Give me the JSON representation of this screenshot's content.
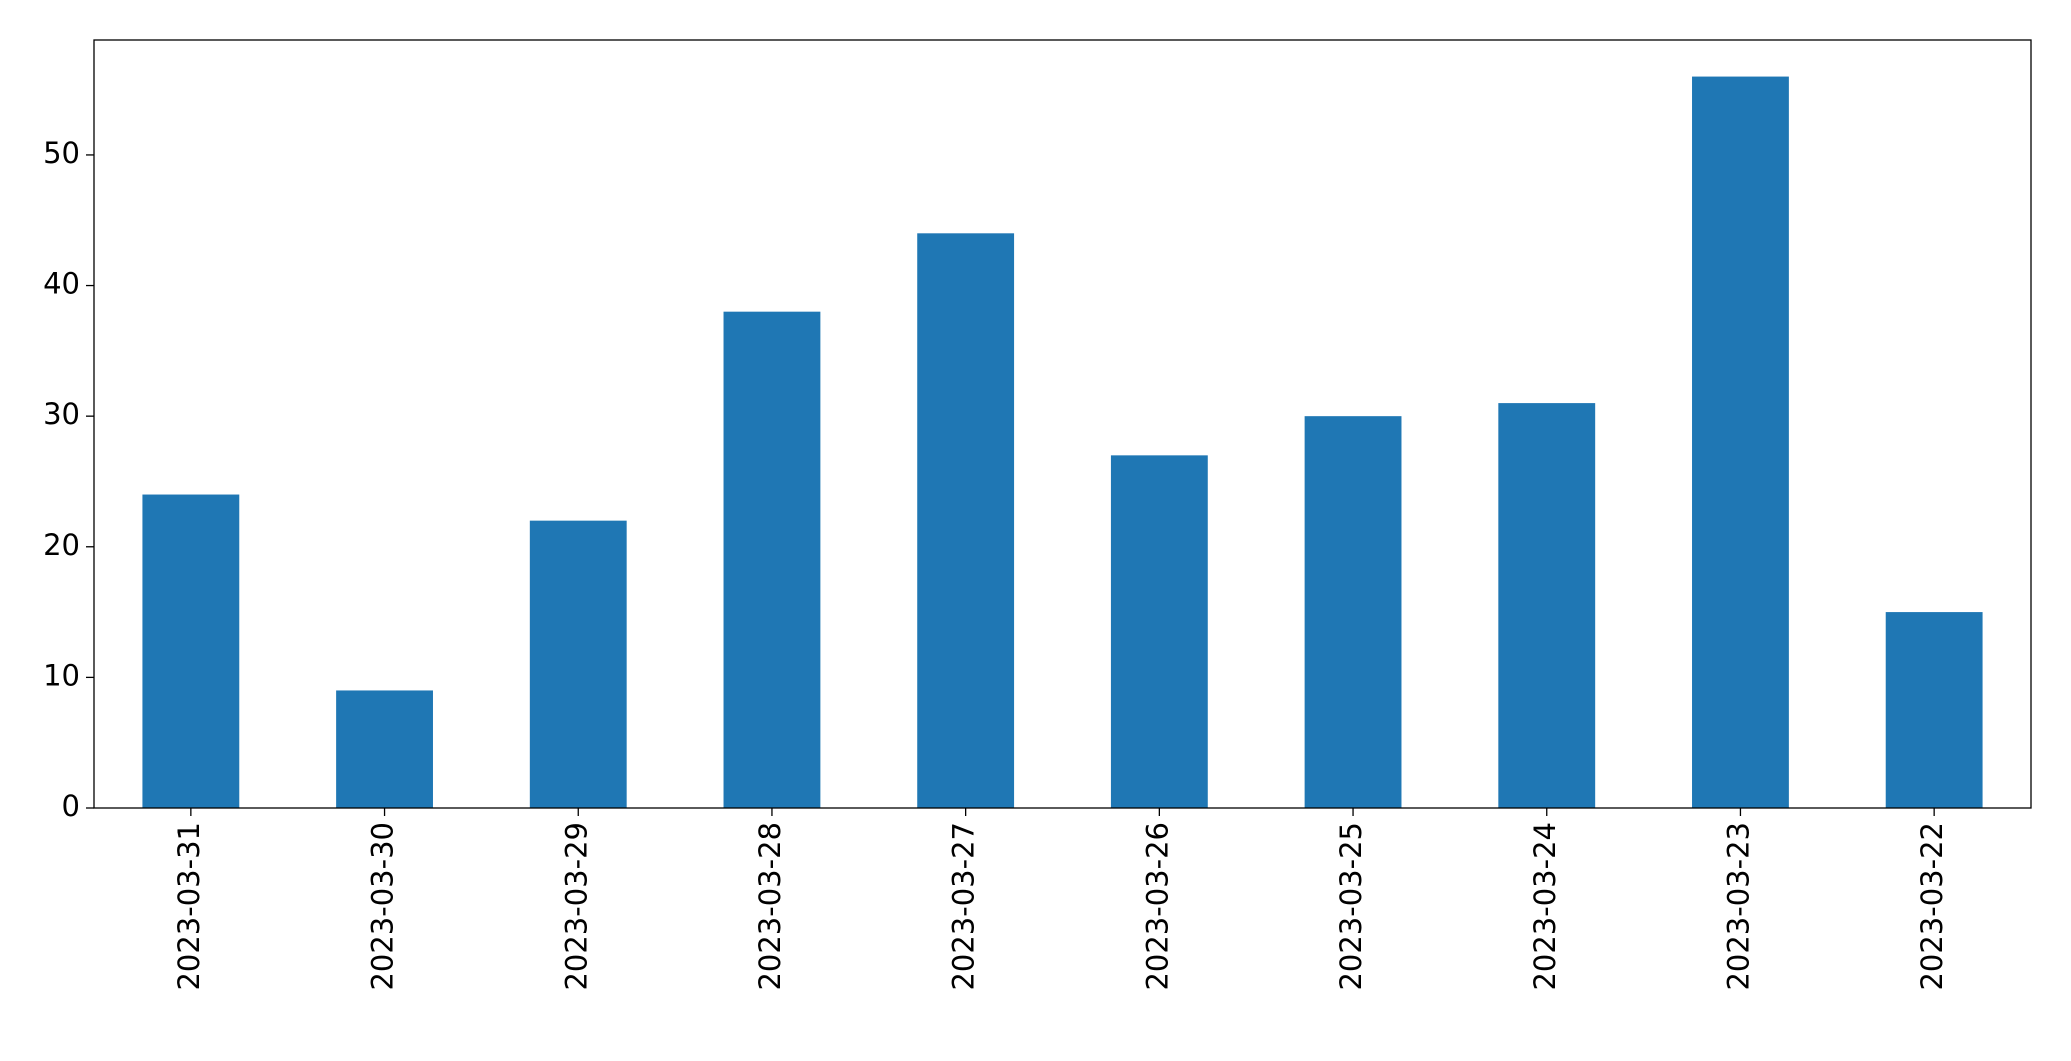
{
  "chart_data": {
    "type": "bar",
    "categories": [
      "2023-03-31",
      "2023-03-30",
      "2023-03-29",
      "2023-03-28",
      "2023-03-27",
      "2023-03-26",
      "2023-03-25",
      "2023-03-24",
      "2023-03-23",
      "2023-03-22"
    ],
    "values": [
      24,
      9,
      22,
      38,
      44,
      27,
      30,
      31,
      56,
      15
    ],
    "color": "#1f77b4",
    "ylim": [
      0,
      58.8
    ],
    "yticks": [
      0,
      10,
      20,
      30,
      40,
      50
    ],
    "grid": false
  }
}
